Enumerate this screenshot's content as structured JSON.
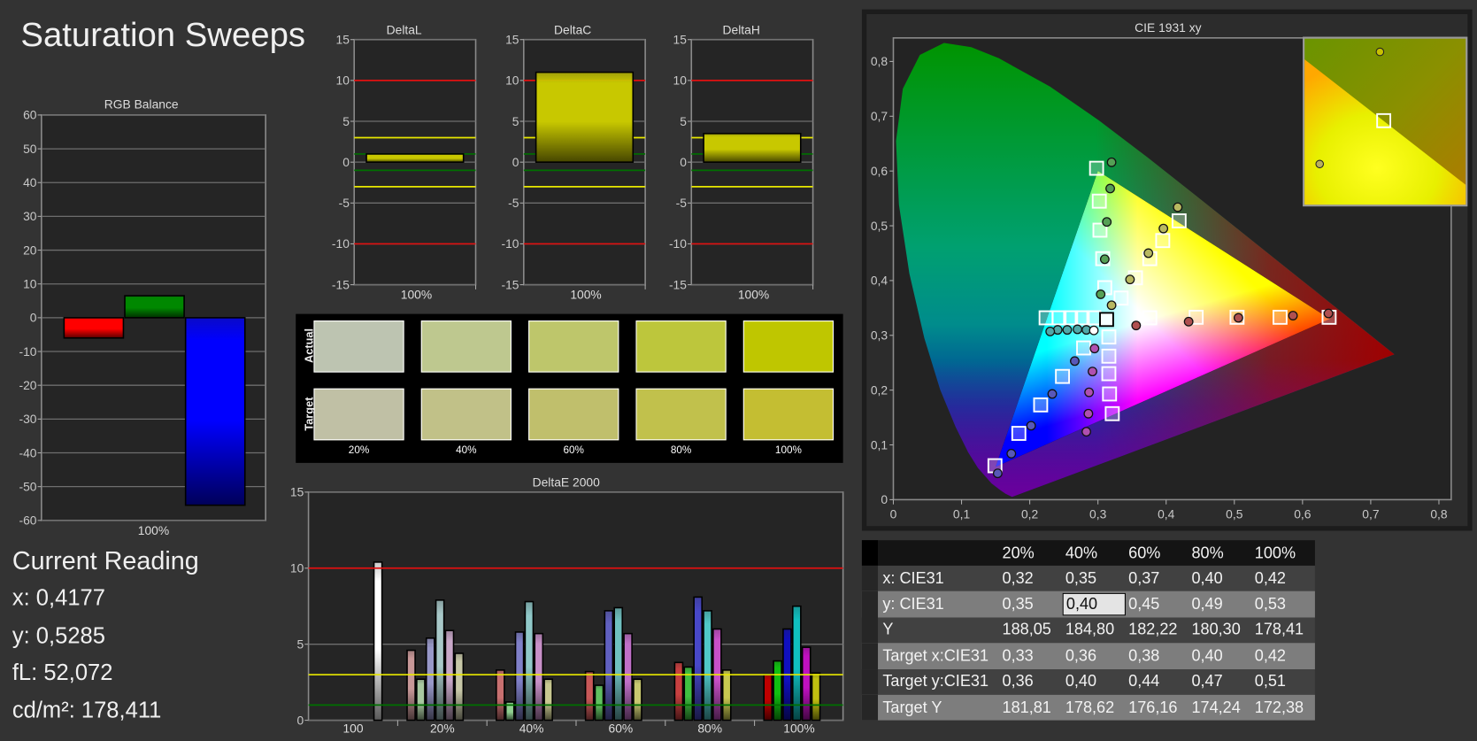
{
  "title": "Saturation Sweeps",
  "current_reading": {
    "heading": "Current Reading",
    "x": "x: 0,4177",
    "y": "y: 0,5285",
    "fl": "fL: 52,072",
    "cdm2": "cd/m²: 178,411"
  },
  "swatches": {
    "row_labels": [
      "Actual",
      "Target"
    ],
    "columns": [
      {
        "label": "20%",
        "actual": "#bdc4b1",
        "target": "#c0c0a5"
      },
      {
        "label": "40%",
        "actual": "#bec88f",
        "target": "#c1c188"
      },
      {
        "label": "60%",
        "actual": "#bec66b",
        "target": "#c0bf6c"
      },
      {
        "label": "80%",
        "actual": "#bdc63c",
        "target": "#c1c14c"
      },
      {
        "label": "100%",
        "actual": "#bfc600",
        "target": "#c4be32"
      }
    ]
  },
  "table": {
    "columns": [
      "20%",
      "40%",
      "60%",
      "80%",
      "100%"
    ],
    "selected_cell": {
      "row": 1,
      "col": 1
    },
    "rows": [
      {
        "label": "x: CIE31",
        "values": [
          "0,32",
          "0,35",
          "0,37",
          "0,40",
          "0,42"
        ]
      },
      {
        "label": "y: CIE31",
        "values": [
          "0,35",
          "0,40",
          "0,45",
          "0,49",
          "0,53"
        ]
      },
      {
        "label": "Y",
        "values": [
          "188,05",
          "184,80",
          "182,22",
          "180,30",
          "178,41"
        ]
      },
      {
        "label": "Target x:CIE31",
        "values": [
          "0,33",
          "0,36",
          "0,38",
          "0,40",
          "0,42"
        ]
      },
      {
        "label": "Target y:CIE31",
        "values": [
          "0,36",
          "0,40",
          "0,44",
          "0,47",
          "0,51"
        ]
      },
      {
        "label": "Target Y",
        "values": [
          "181,81",
          "178,62",
          "176,16",
          "174,24",
          "172,38"
        ]
      }
    ]
  },
  "chart_data": [
    {
      "id": "rgb",
      "type": "bar",
      "title": "RGB Balance",
      "categories": [
        "100%"
      ],
      "ylim": [
        -60,
        60
      ],
      "yticks": [
        60,
        50,
        40,
        30,
        20,
        10,
        0,
        -10,
        -20,
        -30,
        -40,
        -50,
        -60
      ],
      "ytick_labels": [
        "60",
        "50",
        "40",
        "30",
        "20",
        "10",
        "0",
        "-10",
        "-20",
        "-30",
        "-40",
        "-50",
        "-60"
      ],
      "bars": [
        {
          "value": -6,
          "color": "#ff0000"
        },
        {
          "value": 6.5,
          "color": "#008800"
        },
        {
          "value": -55.5,
          "color": "#0000ff"
        }
      ],
      "grid": true
    },
    {
      "id": "deltaL",
      "type": "bar",
      "title": "DeltaL",
      "categories": [
        "100%"
      ],
      "ylim": [
        -15,
        15
      ],
      "yticks": [
        15,
        10,
        5,
        0,
        -5,
        -10,
        -15
      ],
      "ytick_labels": [
        "15",
        "10",
        "5",
        "0",
        "-5",
        "-10",
        "-15"
      ],
      "bars": [
        {
          "value": 1.0,
          "color": "#c8c800"
        }
      ],
      "thresholds": [
        {
          "value": 10,
          "color": "#e01010"
        },
        {
          "value": -10,
          "color": "#e01010"
        },
        {
          "value": 3,
          "color": "#e8e800"
        },
        {
          "value": -3,
          "color": "#e8e800"
        },
        {
          "value": 1,
          "color": "#007000"
        },
        {
          "value": -1,
          "color": "#007000"
        }
      ],
      "grid": true
    },
    {
      "id": "deltaC",
      "type": "bar",
      "title": "DeltaC",
      "categories": [
        "100%"
      ],
      "ylim": [
        -15,
        15
      ],
      "yticks": [
        15,
        10,
        5,
        0,
        -5,
        -10,
        -15
      ],
      "ytick_labels": [
        "15",
        "10",
        "5",
        "0",
        "-5",
        "-10",
        "-15"
      ],
      "bars": [
        {
          "value": 11.0,
          "color": "#c8c800"
        }
      ],
      "thresholds": [
        {
          "value": 10,
          "color": "#e01010"
        },
        {
          "value": -10,
          "color": "#e01010"
        },
        {
          "value": 3,
          "color": "#e8e800"
        },
        {
          "value": -3,
          "color": "#e8e800"
        },
        {
          "value": 1,
          "color": "#007000"
        },
        {
          "value": -1,
          "color": "#007000"
        }
      ],
      "grid": true
    },
    {
      "id": "deltaH",
      "type": "bar",
      "title": "DeltaH",
      "categories": [
        "100%"
      ],
      "ylim": [
        -15,
        15
      ],
      "yticks": [
        15,
        10,
        5,
        0,
        -5,
        -10,
        -15
      ],
      "ytick_labels": [
        "15",
        "10",
        "5",
        "0",
        "-5",
        "-10",
        "-15"
      ],
      "bars": [
        {
          "value": 3.5,
          "color": "#c8c800"
        }
      ],
      "thresholds": [
        {
          "value": 10,
          "color": "#e01010"
        },
        {
          "value": -10,
          "color": "#e01010"
        },
        {
          "value": 3,
          "color": "#e8e800"
        },
        {
          "value": -3,
          "color": "#e8e800"
        },
        {
          "value": 1,
          "color": "#007000"
        },
        {
          "value": -1,
          "color": "#007000"
        }
      ],
      "grid": true
    },
    {
      "id": "deltaE",
      "type": "bar",
      "title": "DeltaE 2000",
      "categories": [
        "100",
        "20%",
        "40%",
        "60%",
        "80%",
        "100%"
      ],
      "ylim": [
        0,
        15
      ],
      "yticks": [
        15,
        10,
        5,
        0
      ],
      "ytick_labels": [
        "15",
        "10",
        "5",
        "0"
      ],
      "thresholds": [
        {
          "value": 10,
          "color": "#e01010"
        },
        {
          "value": 3,
          "color": "#e8e800"
        },
        {
          "value": 1,
          "color": "#007000"
        }
      ],
      "groups": [
        {
          "bars": [
            {
              "value": 10.4,
              "color": "#ffffff"
            }
          ]
        },
        {
          "bars": [
            {
              "value": 4.6,
              "color": "#c89898"
            },
            {
              "value": 2.7,
              "color": "#a8c8a0"
            },
            {
              "value": 5.4,
              "color": "#9898c8"
            },
            {
              "value": 7.9,
              "color": "#a8c8c8"
            },
            {
              "value": 5.9,
              "color": "#c8a8c8"
            },
            {
              "value": 4.4,
              "color": "#c8c8a8"
            }
          ]
        },
        {
          "bars": [
            {
              "value": 3.3,
              "color": "#c87070"
            },
            {
              "value": 1.2,
              "color": "#90d090"
            },
            {
              "value": 5.8,
              "color": "#8080c8"
            },
            {
              "value": 7.8,
              "color": "#90c8c8"
            },
            {
              "value": 5.7,
              "color": "#c890c8"
            },
            {
              "value": 2.7,
              "color": "#c8c890"
            }
          ]
        },
        {
          "bars": [
            {
              "value": 3.2,
              "color": "#c85858"
            },
            {
              "value": 2.3,
              "color": "#60c060"
            },
            {
              "value": 7.2,
              "color": "#6060c0"
            },
            {
              "value": 7.4,
              "color": "#70c0c0"
            },
            {
              "value": 5.7,
              "color": "#c070c8"
            },
            {
              "value": 2.7,
              "color": "#c8c870"
            }
          ]
        },
        {
          "bars": [
            {
              "value": 3.8,
              "color": "#c84040"
            },
            {
              "value": 3.5,
              "color": "#40c040"
            },
            {
              "value": 8.1,
              "color": "#4848c8"
            },
            {
              "value": 7.2,
              "color": "#50c8c8"
            },
            {
              "value": 6.0,
              "color": "#c850c8"
            },
            {
              "value": 3.3,
              "color": "#c8c850"
            }
          ]
        },
        {
          "bars": [
            {
              "value": 3.0,
              "color": "#c00000"
            },
            {
              "value": 3.9,
              "color": "#10c010"
            },
            {
              "value": 6.0,
              "color": "#1010c0"
            },
            {
              "value": 7.5,
              "color": "#10c0c0"
            },
            {
              "value": 4.8,
              "color": "#c010c0"
            },
            {
              "value": 3.1,
              "color": "#c0c010"
            }
          ]
        }
      ],
      "grid": true
    },
    {
      "id": "cie",
      "type": "scatter",
      "title": "CIE 1931 xy",
      "xlim": [
        0,
        0.818
      ],
      "ylim": [
        0,
        0.843
      ],
      "xticks": [
        0,
        0.1,
        0.2,
        0.3,
        0.4,
        0.5,
        0.6,
        0.7,
        0.8
      ],
      "xtick_labels": [
        "0",
        "0,1",
        "0,2",
        "0,3",
        "0,4",
        "0,5",
        "0,6",
        "0,7",
        "0,8"
      ],
      "yticks": [
        0,
        0.1,
        0.2,
        0.3,
        0.4,
        0.5,
        0.6,
        0.7,
        0.8
      ],
      "ytick_labels": [
        "0",
        "0,1",
        "0,2",
        "0,3",
        "0,4",
        "0,5",
        "0,6",
        "0,7",
        "0,8"
      ],
      "gamut": {
        "red": [
          0.64,
          0.33
        ],
        "green": [
          0.3,
          0.6
        ],
        "blue": [
          0.15,
          0.06
        ]
      },
      "white_target": [
        0.3127,
        0.329
      ],
      "white_measured": [
        0.294,
        0.309
      ],
      "series": [
        {
          "color": "#55a055",
          "targets": [
            [
              0.31,
              0.387
            ],
            [
              0.307,
              0.44
            ],
            [
              0.303,
              0.492
            ],
            [
              0.302,
              0.545
            ],
            [
              0.298,
              0.605
            ]
          ],
          "measured": [
            [
              0.304,
              0.375
            ],
            [
              0.31,
              0.439
            ],
            [
              0.313,
              0.507
            ],
            [
              0.318,
              0.568
            ],
            [
              0.32,
              0.616
            ]
          ]
        },
        {
          "color": "#b8b860",
          "targets": [
            [
              0.334,
              0.368
            ],
            [
              0.355,
              0.405
            ],
            [
              0.376,
              0.44
            ],
            [
              0.395,
              0.473
            ],
            [
              0.419,
              0.509
            ]
          ],
          "measured": [
            [
              0.32,
              0.355
            ],
            [
              0.347,
              0.402
            ],
            [
              0.374,
              0.45
            ],
            [
              0.396,
              0.495
            ],
            [
              0.417,
              0.534
            ]
          ]
        },
        {
          "color": "#b05050",
          "targets": [
            [
              0.376,
              0.332
            ],
            [
              0.444,
              0.333
            ],
            [
              0.504,
              0.333
            ],
            [
              0.567,
              0.333
            ],
            [
              0.639,
              0.333
            ]
          ],
          "measured": [
            [
              0.356,
              0.318
            ],
            [
              0.433,
              0.325
            ],
            [
              0.506,
              0.332
            ],
            [
              0.586,
              0.336
            ],
            [
              0.638,
              0.34
            ]
          ]
        },
        {
          "color": "#50a8a8",
          "targets": [
            [
              0.294,
              0.332
            ],
            [
              0.277,
              0.332
            ],
            [
              0.26,
              0.332
            ],
            [
              0.243,
              0.332
            ],
            [
              0.224,
              0.332
            ]
          ],
          "measured": [
            [
              0.283,
              0.31
            ],
            [
              0.27,
              0.311
            ],
            [
              0.255,
              0.31
            ],
            [
              0.241,
              0.31
            ],
            [
              0.23,
              0.307
            ]
          ]
        },
        {
          "color": "#5858b8",
          "targets": [
            [
              0.279,
              0.277
            ],
            [
              0.248,
              0.225
            ],
            [
              0.216,
              0.173
            ],
            [
              0.184,
              0.121
            ],
            [
              0.149,
              0.062
            ]
          ],
          "measured": [
            [
              0.266,
              0.253
            ],
            [
              0.233,
              0.193
            ],
            [
              0.202,
              0.135
            ],
            [
              0.173,
              0.084
            ],
            [
              0.153,
              0.048
            ]
          ]
        },
        {
          "color": "#b050b0",
          "targets": [
            [
              0.316,
              0.297
            ],
            [
              0.316,
              0.262
            ],
            [
              0.316,
              0.23
            ],
            [
              0.317,
              0.193
            ],
            [
              0.321,
              0.157
            ]
          ],
          "measured": [
            [
              0.295,
              0.276
            ],
            [
              0.292,
              0.234
            ],
            [
              0.287,
              0.196
            ],
            [
              0.286,
              0.157
            ],
            [
              0.283,
              0.124
            ]
          ]
        }
      ],
      "grid": false
    }
  ]
}
